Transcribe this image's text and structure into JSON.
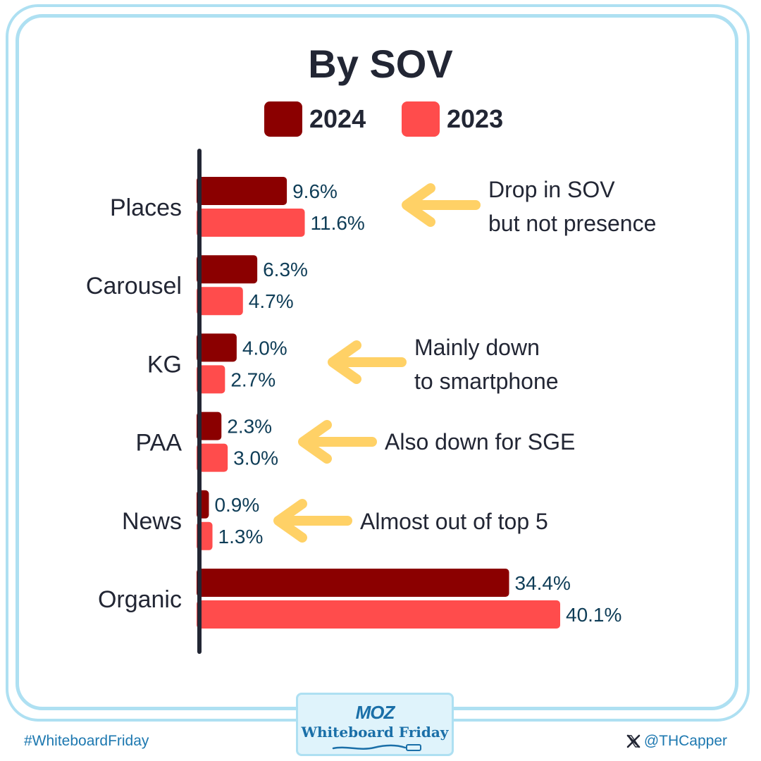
{
  "chart_data": {
    "type": "bar",
    "orientation": "horizontal",
    "title": "By SOV",
    "categories": [
      "Places",
      "Carousel",
      "KG",
      "PAA",
      "News",
      "Organic"
    ],
    "series": [
      {
        "name": "2024",
        "color": "#8b0000",
        "values": [
          9.6,
          6.3,
          4.0,
          2.3,
          0.9,
          34.4
        ],
        "labels": [
          "9.6%",
          "6.3%",
          "4.0%",
          "2.3%",
          "0.9%",
          "34.4%"
        ]
      },
      {
        "name": "2023",
        "color": "#ff4c4c",
        "values": [
          11.6,
          4.7,
          2.7,
          3.0,
          1.3,
          40.1
        ],
        "labels": [
          "11.6%",
          "4.7%",
          "2.7%",
          "3.0%",
          "1.3%",
          "40.1%"
        ]
      }
    ],
    "xlim": [
      0,
      40.1
    ],
    "annotations": [
      {
        "category": "Places",
        "text": [
          "Drop in SOV",
          "but not presence"
        ]
      },
      {
        "category": "KG",
        "text": [
          "Mainly down",
          "to smartphone"
        ]
      },
      {
        "category": "PAA",
        "text": [
          "Also down for SGE"
        ]
      },
      {
        "category": "News",
        "text": [
          "Almost out of top 5"
        ]
      }
    ]
  },
  "colors": {
    "axis": "#222634",
    "label": "#0f3d57",
    "arrow": "#ffd166",
    "frame": "#aee0f2",
    "accent": "#1d78b0"
  },
  "legend": [
    {
      "label": "2024",
      "color": "#8b0000"
    },
    {
      "label": "2023",
      "color": "#ff4c4c"
    }
  ],
  "footer": {
    "hashtag": "#WhiteboardFriday",
    "badge_logo": "MOZ",
    "badge_subtitle": "Whiteboard Friday",
    "handle": "@THCapper",
    "handle_icon": "x-logo-icon"
  }
}
